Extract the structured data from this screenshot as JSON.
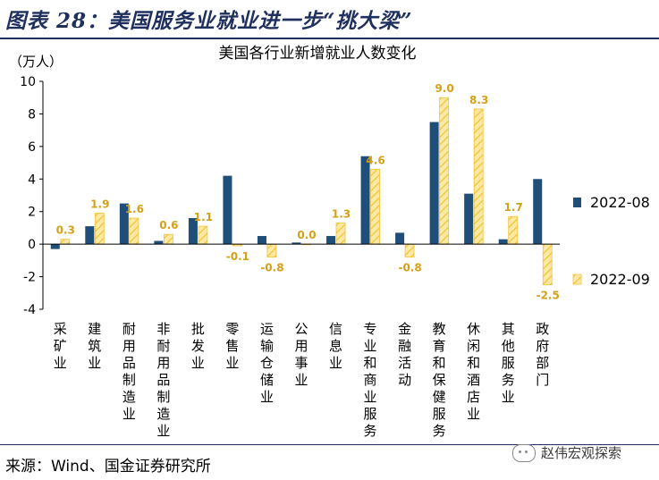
{
  "figure": {
    "title": "图表 28：美国服务业就业进一步“挑大梁”",
    "source": "来源：Wind、国金证券研究所",
    "watermark": "赵伟宏观探索"
  },
  "colors": {
    "series1": "#1f4e79",
    "series2_fill": "#fde9a6",
    "series2_stripe": "#f2c335",
    "label_color": "#d4a017",
    "frame": "#1f2f5e"
  },
  "chart_data": {
    "type": "bar",
    "title": "美国各行业新增就业人数变化",
    "ylabel": "（万人）",
    "ylim": [
      -4,
      10
    ],
    "yticks": [
      -4,
      -2,
      0,
      2,
      4,
      6,
      8,
      10
    ],
    "categories": [
      "采矿业",
      "建筑业",
      "耐用品制造业",
      "非耐用品制造业",
      "批发业",
      "零售业",
      "运输仓储业",
      "公用事业",
      "信息业",
      "专业和商业服务",
      "金融活动",
      "教育和保健服务",
      "休闲和酒店业",
      "其他服务业",
      "政府部门"
    ],
    "series": [
      {
        "name": "2022-08",
        "values": [
          -0.3,
          1.1,
          2.5,
          0.2,
          1.6,
          4.2,
          0.5,
          0.1,
          0.5,
          5.4,
          0.7,
          7.5,
          3.1,
          0.3,
          4.0
        ]
      },
      {
        "name": "2022-09",
        "values": [
          0.3,
          1.9,
          1.6,
          0.6,
          1.1,
          -0.1,
          -0.8,
          0.0,
          1.3,
          4.6,
          -0.8,
          9.0,
          8.3,
          1.7,
          -2.5
        ],
        "data_labels": [
          "0.3",
          "1.9",
          "1.6",
          "0.6",
          "1.1",
          "-0.1",
          "-0.8",
          "0.0",
          "1.3",
          "4.6",
          "-0.8",
          "9.0",
          "8.3",
          "1.7",
          "-2.5"
        ]
      }
    ],
    "legend_position": "right",
    "grid": false
  }
}
